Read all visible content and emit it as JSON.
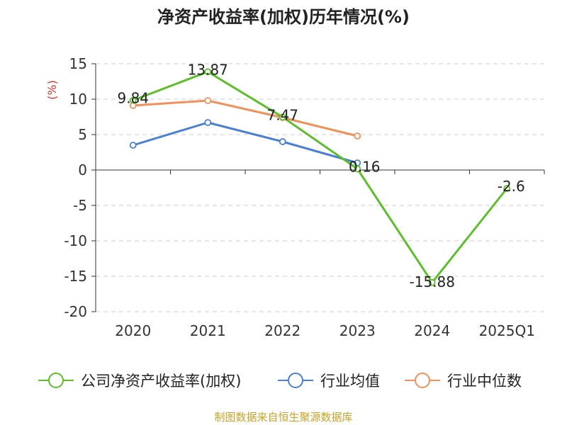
{
  "chart_data": {
    "type": "line",
    "title": "净资产收益率(加权)历年情况(%)",
    "ylabel": "(%)",
    "categories": [
      "2020",
      "2021",
      "2022",
      "2023",
      "2024",
      "2025Q1"
    ],
    "ylim": [
      -20,
      15
    ],
    "yticks": [
      15,
      10,
      5,
      0,
      -5,
      -10,
      -15,
      -20
    ],
    "grid": true,
    "legend_position": "bottom",
    "series": [
      {
        "name": "公司净资产收益率(加权)",
        "color": "#5cbf2a",
        "values": [
          9.84,
          13.87,
          7.47,
          0.16,
          -15.88,
          -2.6
        ],
        "labels": [
          "9.84",
          "13.87",
          "7.47",
          "0.16",
          "-15.88",
          "-2.6"
        ]
      },
      {
        "name": "行业均值",
        "color": "#4a7fd4",
        "values": [
          3.5,
          6.7,
          4.0,
          1.0,
          null,
          null
        ]
      },
      {
        "name": "行业中位数",
        "color": "#f0915c",
        "values": [
          9.1,
          9.8,
          7.4,
          4.8,
          null,
          null
        ]
      }
    ]
  },
  "footer": "制图数据来自恒生聚源数据库"
}
